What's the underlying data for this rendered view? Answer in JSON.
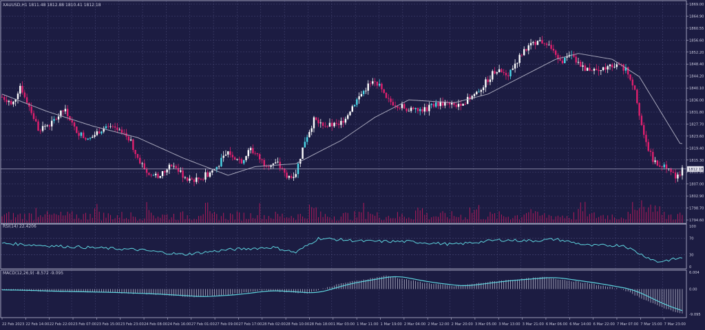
{
  "header": {
    "symbol_info": "XAUUSD,H1  1811.48 1812.88 1810.41 1812.18"
  },
  "colors": {
    "background": "#1c1c42",
    "grid": "#4a4a78",
    "frame": "#c0c0d8",
    "text": "#c8c8dc",
    "bull": "#ffffff",
    "bear": "#e0206e",
    "bull_alt": "#4ad8e8",
    "ma": "#a8a8bc",
    "indicator": "#5fd6e0",
    "volume": "#b01a5a"
  },
  "panels": {
    "rsi_title": "RSI(14) 22.4206",
    "macd_title": "MACD(12,26,9) -8.572 -9.095"
  },
  "chart_data": [
    {
      "type": "candlestick",
      "title": "XAUUSD,H1",
      "ylim": [
        1794.6,
        1869.0
      ],
      "price_ticks": [
        "1869.00",
        "1864.90",
        "1860.55",
        "1856.60",
        "1852.20",
        "1848.40",
        "1844.20",
        "1840.10",
        "1836.00",
        "1831.80",
        "1827.70",
        "1823.60",
        "1819.40",
        "1815.30",
        "1811.20",
        "1807.00",
        "1802.90",
        "1798.70",
        "1794.60"
      ],
      "current_price": "1812.18",
      "anchors": [
        {
          "i": 0,
          "p": 1837
        },
        {
          "i": 5,
          "p": 1835
        },
        {
          "i": 8,
          "p": 1841
        },
        {
          "i": 12,
          "p": 1834
        },
        {
          "i": 16,
          "p": 1826
        },
        {
          "i": 22,
          "p": 1828
        },
        {
          "i": 28,
          "p": 1833
        },
        {
          "i": 32,
          "p": 1826
        },
        {
          "i": 38,
          "p": 1822
        },
        {
          "i": 44,
          "p": 1826
        },
        {
          "i": 50,
          "p": 1826
        },
        {
          "i": 56,
          "p": 1823
        },
        {
          "i": 60,
          "p": 1816
        },
        {
          "i": 65,
          "p": 1810
        },
        {
          "i": 70,
          "p": 1810
        },
        {
          "i": 76,
          "p": 1814
        },
        {
          "i": 82,
          "p": 1808
        },
        {
          "i": 88,
          "p": 1809
        },
        {
          "i": 94,
          "p": 1812
        },
        {
          "i": 100,
          "p": 1818
        },
        {
          "i": 106,
          "p": 1815
        },
        {
          "i": 110,
          "p": 1819
        },
        {
          "i": 116,
          "p": 1814
        },
        {
          "i": 122,
          "p": 1814
        },
        {
          "i": 126,
          "p": 1809
        },
        {
          "i": 130,
          "p": 1811
        },
        {
          "i": 134,
          "p": 1822
        },
        {
          "i": 138,
          "p": 1829
        },
        {
          "i": 144,
          "p": 1827
        },
        {
          "i": 150,
          "p": 1828
        },
        {
          "i": 156,
          "p": 1835
        },
        {
          "i": 162,
          "p": 1841
        },
        {
          "i": 166,
          "p": 1842
        },
        {
          "i": 170,
          "p": 1836
        },
        {
          "i": 176,
          "p": 1834
        },
        {
          "i": 182,
          "p": 1832
        },
        {
          "i": 188,
          "p": 1833
        },
        {
          "i": 194,
          "p": 1835
        },
        {
          "i": 200,
          "p": 1834
        },
        {
          "i": 206,
          "p": 1836
        },
        {
          "i": 212,
          "p": 1840
        },
        {
          "i": 218,
          "p": 1846
        },
        {
          "i": 224,
          "p": 1845
        },
        {
          "i": 230,
          "p": 1852
        },
        {
          "i": 236,
          "p": 1856
        },
        {
          "i": 242,
          "p": 1856
        },
        {
          "i": 246,
          "p": 1849
        },
        {
          "i": 252,
          "p": 1851
        },
        {
          "i": 258,
          "p": 1847
        },
        {
          "i": 264,
          "p": 1846
        },
        {
          "i": 270,
          "p": 1848
        },
        {
          "i": 276,
          "p": 1847
        },
        {
          "i": 280,
          "p": 1840
        },
        {
          "i": 284,
          "p": 1823
        },
        {
          "i": 288,
          "p": 1815
        },
        {
          "i": 294,
          "p": 1813
        },
        {
          "i": 298,
          "p": 1809
        },
        {
          "i": 301,
          "p": 1812
        }
      ],
      "ma_anchors": [
        {
          "i": 0,
          "p": 1838
        },
        {
          "i": 20,
          "p": 1832
        },
        {
          "i": 40,
          "p": 1827
        },
        {
          "i": 60,
          "p": 1823
        },
        {
          "i": 80,
          "p": 1816
        },
        {
          "i": 100,
          "p": 1810
        },
        {
          "i": 112,
          "p": 1813
        },
        {
          "i": 130,
          "p": 1814
        },
        {
          "i": 150,
          "p": 1822
        },
        {
          "i": 165,
          "p": 1830
        },
        {
          "i": 180,
          "p": 1836
        },
        {
          "i": 200,
          "p": 1835
        },
        {
          "i": 215,
          "p": 1838
        },
        {
          "i": 230,
          "p": 1844
        },
        {
          "i": 245,
          "p": 1850
        },
        {
          "i": 255,
          "p": 1852
        },
        {
          "i": 270,
          "p": 1850
        },
        {
          "i": 282,
          "p": 1844
        },
        {
          "i": 300,
          "p": 1821
        }
      ]
    },
    {
      "type": "line",
      "title": "RSI(14)",
      "ylim": [
        0,
        100
      ],
      "y_ticks": [
        100,
        70,
        30,
        0
      ],
      "anchors": [
        {
          "i": 0,
          "v": 58
        },
        {
          "i": 20,
          "v": 52
        },
        {
          "i": 40,
          "v": 47
        },
        {
          "i": 60,
          "v": 42
        },
        {
          "i": 80,
          "v": 30
        },
        {
          "i": 100,
          "v": 42
        },
        {
          "i": 120,
          "v": 48
        },
        {
          "i": 130,
          "v": 35
        },
        {
          "i": 140,
          "v": 70
        },
        {
          "i": 160,
          "v": 63
        },
        {
          "i": 180,
          "v": 62
        },
        {
          "i": 200,
          "v": 55
        },
        {
          "i": 220,
          "v": 66
        },
        {
          "i": 235,
          "v": 64
        },
        {
          "i": 245,
          "v": 68
        },
        {
          "i": 260,
          "v": 52
        },
        {
          "i": 275,
          "v": 53
        },
        {
          "i": 283,
          "v": 30
        },
        {
          "i": 290,
          "v": 12
        },
        {
          "i": 301,
          "v": 22
        }
      ]
    },
    {
      "type": "bar+line",
      "title": "MACD(12,26,9)",
      "ylim": [
        -9.8,
        6.3
      ],
      "y_ticks": [
        "6.004",
        "0.00",
        "-9.095"
      ],
      "anchors": [
        {
          "i": 0,
          "v": -0.3
        },
        {
          "i": 20,
          "v": -0.8
        },
        {
          "i": 45,
          "v": -1.2
        },
        {
          "i": 65,
          "v": -1.8
        },
        {
          "i": 85,
          "v": -2.8
        },
        {
          "i": 100,
          "v": -2.0
        },
        {
          "i": 115,
          "v": -0.5
        },
        {
          "i": 135,
          "v": -1.5
        },
        {
          "i": 150,
          "v": 2.0
        },
        {
          "i": 170,
          "v": 4.8
        },
        {
          "i": 185,
          "v": 2.5
        },
        {
          "i": 200,
          "v": 1.0
        },
        {
          "i": 220,
          "v": 3.0
        },
        {
          "i": 240,
          "v": 4.3
        },
        {
          "i": 260,
          "v": 2.0
        },
        {
          "i": 275,
          "v": -0.2
        },
        {
          "i": 290,
          "v": -6.0
        },
        {
          "i": 301,
          "v": -9.0
        }
      ]
    }
  ],
  "time_axis": {
    "labels": [
      "22 Feb 2023",
      "22 Feb 14:00",
      "22 Feb 22:00",
      "23 Feb 07:00",
      "23 Feb 15:00",
      "23 Feb 23:00",
      "24 Feb 08:00",
      "24 Feb 16:00",
      "27 Feb 01:00",
      "27 Feb 09:00",
      "27 Feb 17:00",
      "28 Feb 02:00",
      "28 Feb 10:00",
      "28 Feb 18:00",
      "1 Mar 03:00",
      "1 Mar 11:00",
      "1 Mar 19:00",
      "2 Mar 04:00",
      "2 Mar 12:00",
      "2 Mar 20:00",
      "3 Mar 05:00",
      "3 Mar 13:00",
      "3 Mar 21:00",
      "6 Mar 06:00",
      "6 Mar 14:00",
      "6 Mar 22:00",
      "7 Mar 07:00",
      "7 Mar 15:00",
      "7 Mar 23:00"
    ]
  }
}
